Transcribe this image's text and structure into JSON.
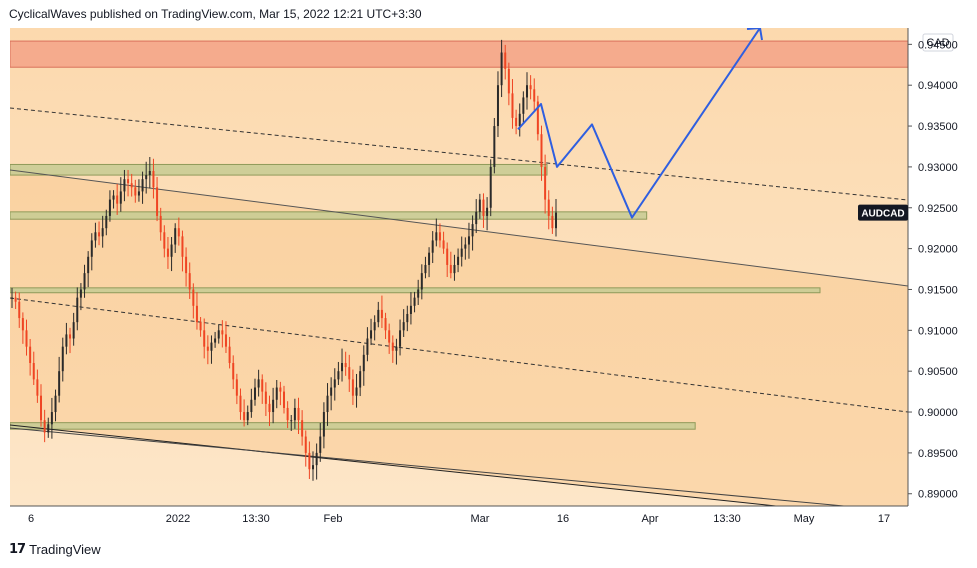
{
  "header": {
    "publish_text": "CyclicalWaves published on TradingView.com, Mar 15, 2022 12:21 UTC+3:30"
  },
  "footer": {
    "logo": "17",
    "brand": "TradingView"
  },
  "chart_data": {
    "type": "candlestick",
    "symbol_label": "AUDCAD",
    "currency_label": "CAD",
    "current_price": 0.9244,
    "ylim": [
      0.8885,
      0.947
    ],
    "y_ticks": [
      "0.94500",
      "0.94000",
      "0.93500",
      "0.93000",
      "0.92500",
      "0.92000",
      "0.91500",
      "0.91000",
      "0.90500",
      "0.90000",
      "0.89500",
      "0.89000"
    ],
    "x_tick_labels": [
      "6",
      "2022",
      "13:30",
      "Feb",
      "Mar",
      "16",
      "Apr",
      "13:30",
      "May",
      "17"
    ],
    "colors": {
      "bg_top": "#fcd9ae",
      "bg_bottom": "#fde6c8",
      "channel_fill": "#f8c58a",
      "resistance_zone": "#f4a58a",
      "support_zone": "#c5cb93",
      "up_candle": "#2a2a2a",
      "down_candle": "#ef4523",
      "projection": "#2f5fe0",
      "symbol_tag": "#131722"
    },
    "price_path": [
      [
        0.914,
        0.9135,
        0.9115,
        0.91,
        0.908,
        0.906,
        0.904,
        0.902,
        0.899,
        0.8975,
        0.8985,
        0.9,
        0.902,
        0.905,
        0.908,
        0.9095,
        0.909,
        0.911,
        0.914,
        0.915,
        0.917,
        0.919,
        0.921,
        0.922,
        0.9215,
        0.9225,
        0.924,
        0.926,
        0.9265,
        0.9255,
        0.927,
        0.9285,
        0.928,
        0.9275,
        0.9265,
        0.927,
        0.9285,
        0.929,
        0.9295,
        0.9275,
        0.924,
        0.922,
        0.92,
        0.919,
        0.9205,
        0.9225,
        0.9215,
        0.919,
        0.917,
        0.915,
        0.913,
        0.911,
        0.91,
        0.908,
        0.9075,
        0.9085,
        0.909,
        0.91,
        0.9095,
        0.908,
        0.906,
        0.904,
        0.902,
        0.9,
        0.899,
        0.9,
        0.9015,
        0.903,
        0.904,
        0.9025,
        0.901,
        0.9,
        0.9015,
        0.903,
        0.9025,
        0.9005,
        0.899,
        0.899,
        0.9005,
        0.899,
        0.897,
        0.895,
        0.893,
        0.8935,
        0.895,
        0.897,
        0.9,
        0.902,
        0.903,
        0.904,
        0.905,
        0.906,
        0.9055,
        0.904,
        0.902,
        0.903,
        0.905,
        0.907,
        0.909,
        0.91,
        0.911,
        0.9125,
        0.9115,
        0.91,
        0.9085,
        0.9075,
        0.908,
        0.91,
        0.911,
        0.912,
        0.913,
        0.914,
        0.915,
        0.917,
        0.918,
        0.9195,
        0.921,
        0.922,
        0.921,
        0.92,
        0.918,
        0.917,
        0.918,
        0.919,
        0.92,
        0.9205,
        0.9215,
        0.923,
        0.9245,
        0.926,
        0.924,
        0.925,
        0.93,
        0.935,
        0.94,
        0.944,
        0.942,
        0.939,
        0.936,
        0.935,
        0.9365,
        0.9385,
        0.94,
        0.9395,
        0.938,
        0.934,
        0.93,
        0.926,
        0.924,
        0.9225,
        0.9244
      ]
    ],
    "zones": [
      {
        "kind": "resistance",
        "top": 0.9454,
        "bottom": 0.9422,
        "x_end": "right"
      },
      {
        "kind": "support",
        "top": 0.9303,
        "bottom": 0.929,
        "x_end": 0.598
      },
      {
        "kind": "support",
        "top": 0.9245,
        "bottom": 0.9236,
        "x_end": 0.709
      },
      {
        "kind": "support",
        "top": 0.9152,
        "bottom": 0.9146,
        "x_end": 0.902
      },
      {
        "kind": "support",
        "top": 0.8987,
        "bottom": 0.8979,
        "x_end": 0.763
      }
    ],
    "projection_path": [
      [
        0.9346,
        0.9377
      ],
      [
        0.93,
        0.9352
      ],
      [
        0.9238,
        0.947
      ]
    ]
  }
}
